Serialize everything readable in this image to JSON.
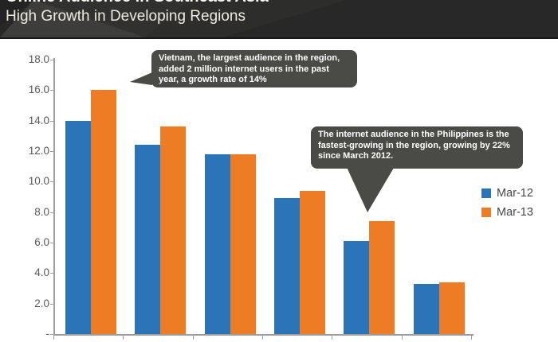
{
  "header": {
    "title": "Online Audience in Southeast Asia",
    "subtitle": "High Growth in Developing Regions"
  },
  "annotations": [
    {
      "id": "vietnam-callout",
      "text": "Vietnam, the largest audience in the region, added 2 million internet users in the past year, a growth rate of 14%"
    },
    {
      "id": "philippines-callout",
      "text": "The internet audience in the Philippines  is the fastest-growing in the region, growing by 22% since March 2012."
    }
  ],
  "legend": [
    {
      "label": "Mar-12",
      "color": "#2B74B8"
    },
    {
      "label": "Mar-13",
      "color": "#EE7C25"
    }
  ],
  "colors": {
    "mar12_blue": "#2B74B8",
    "mar13_orange": "#EE7C25",
    "callout_bg": "#4a4a47",
    "header_bg": "#282828",
    "axis_gray": "#9e9e9e",
    "tick_label_gray": "#595959"
  },
  "chart_data": {
    "type": "bar",
    "categories": [
      "",
      "",
      "",
      "",
      "",
      ""
    ],
    "x_labels_visible": false,
    "series": [
      {
        "name": "Mar-12",
        "color": "#2B74B8",
        "values": [
          14.0,
          12.4,
          11.8,
          8.9,
          6.1,
          3.3
        ]
      },
      {
        "name": "Mar-13",
        "color": "#EE7C25",
        "values": [
          16.0,
          13.6,
          11.8,
          9.4,
          7.4,
          3.4
        ]
      }
    ],
    "title": "Online Audience in Southeast Asia",
    "subtitle": "High Growth in Developing Regions",
    "xlabel": "",
    "ylabel": "",
    "ylim": [
      0,
      18
    ],
    "ytick_step": 2,
    "ytick_labels": [
      "-",
      "2.0",
      "4.0",
      "6.0",
      "8.0",
      "10.0",
      "12.0",
      "14.0",
      "16.0",
      "18.0"
    ],
    "grid": false,
    "legend_position": "right"
  }
}
